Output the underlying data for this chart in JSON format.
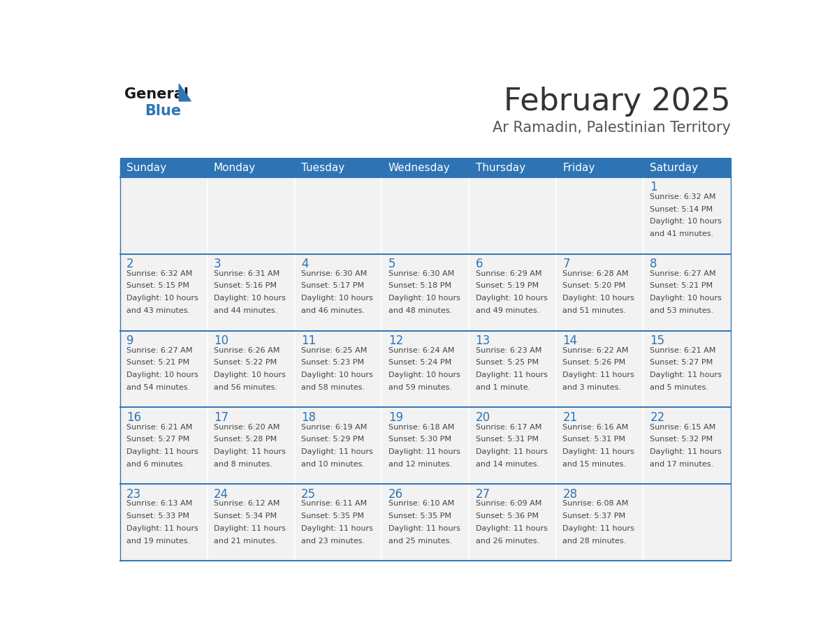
{
  "title": "February 2025",
  "subtitle": "Ar Ramadin, Palestinian Territory",
  "header_bg": "#2E74B5",
  "header_text_color": "#FFFFFF",
  "cell_bg": "#F2F2F2",
  "cell_border_color": "#2E74B5",
  "day_names": [
    "Sunday",
    "Monday",
    "Tuesday",
    "Wednesday",
    "Thursday",
    "Friday",
    "Saturday"
  ],
  "title_color": "#333333",
  "subtitle_color": "#555555",
  "day_number_color": "#2E74B5",
  "info_text_color": "#444444",
  "logo_general_color": "#1a1a1a",
  "logo_blue_color": "#2E74B5",
  "weeks": [
    [
      null,
      null,
      null,
      null,
      null,
      null,
      1
    ],
    [
      2,
      3,
      4,
      5,
      6,
      7,
      8
    ],
    [
      9,
      10,
      11,
      12,
      13,
      14,
      15
    ],
    [
      16,
      17,
      18,
      19,
      20,
      21,
      22
    ],
    [
      23,
      24,
      25,
      26,
      27,
      28,
      null
    ]
  ],
  "cell_data": {
    "1": {
      "sunrise": "6:32 AM",
      "sunset": "5:14 PM",
      "daylight_hours": 10,
      "daylight_minutes": 41
    },
    "2": {
      "sunrise": "6:32 AM",
      "sunset": "5:15 PM",
      "daylight_hours": 10,
      "daylight_minutes": 43
    },
    "3": {
      "sunrise": "6:31 AM",
      "sunset": "5:16 PM",
      "daylight_hours": 10,
      "daylight_minutes": 44
    },
    "4": {
      "sunrise": "6:30 AM",
      "sunset": "5:17 PM",
      "daylight_hours": 10,
      "daylight_minutes": 46
    },
    "5": {
      "sunrise": "6:30 AM",
      "sunset": "5:18 PM",
      "daylight_hours": 10,
      "daylight_minutes": 48
    },
    "6": {
      "sunrise": "6:29 AM",
      "sunset": "5:19 PM",
      "daylight_hours": 10,
      "daylight_minutes": 49
    },
    "7": {
      "sunrise": "6:28 AM",
      "sunset": "5:20 PM",
      "daylight_hours": 10,
      "daylight_minutes": 51
    },
    "8": {
      "sunrise": "6:27 AM",
      "sunset": "5:21 PM",
      "daylight_hours": 10,
      "daylight_minutes": 53
    },
    "9": {
      "sunrise": "6:27 AM",
      "sunset": "5:21 PM",
      "daylight_hours": 10,
      "daylight_minutes": 54
    },
    "10": {
      "sunrise": "6:26 AM",
      "sunset": "5:22 PM",
      "daylight_hours": 10,
      "daylight_minutes": 56
    },
    "11": {
      "sunrise": "6:25 AM",
      "sunset": "5:23 PM",
      "daylight_hours": 10,
      "daylight_minutes": 58
    },
    "12": {
      "sunrise": "6:24 AM",
      "sunset": "5:24 PM",
      "daylight_hours": 10,
      "daylight_minutes": 59
    },
    "13": {
      "sunrise": "6:23 AM",
      "sunset": "5:25 PM",
      "daylight_hours": 11,
      "daylight_minutes": 1
    },
    "14": {
      "sunrise": "6:22 AM",
      "sunset": "5:26 PM",
      "daylight_hours": 11,
      "daylight_minutes": 3
    },
    "15": {
      "sunrise": "6:21 AM",
      "sunset": "5:27 PM",
      "daylight_hours": 11,
      "daylight_minutes": 5
    },
    "16": {
      "sunrise": "6:21 AM",
      "sunset": "5:27 PM",
      "daylight_hours": 11,
      "daylight_minutes": 6
    },
    "17": {
      "sunrise": "6:20 AM",
      "sunset": "5:28 PM",
      "daylight_hours": 11,
      "daylight_minutes": 8
    },
    "18": {
      "sunrise": "6:19 AM",
      "sunset": "5:29 PM",
      "daylight_hours": 11,
      "daylight_minutes": 10
    },
    "19": {
      "sunrise": "6:18 AM",
      "sunset": "5:30 PM",
      "daylight_hours": 11,
      "daylight_minutes": 12
    },
    "20": {
      "sunrise": "6:17 AM",
      "sunset": "5:31 PM",
      "daylight_hours": 11,
      "daylight_minutes": 14
    },
    "21": {
      "sunrise": "6:16 AM",
      "sunset": "5:31 PM",
      "daylight_hours": 11,
      "daylight_minutes": 15
    },
    "22": {
      "sunrise": "6:15 AM",
      "sunset": "5:32 PM",
      "daylight_hours": 11,
      "daylight_minutes": 17
    },
    "23": {
      "sunrise": "6:13 AM",
      "sunset": "5:33 PM",
      "daylight_hours": 11,
      "daylight_minutes": 19
    },
    "24": {
      "sunrise": "6:12 AM",
      "sunset": "5:34 PM",
      "daylight_hours": 11,
      "daylight_minutes": 21
    },
    "25": {
      "sunrise": "6:11 AM",
      "sunset": "5:35 PM",
      "daylight_hours": 11,
      "daylight_minutes": 23
    },
    "26": {
      "sunrise": "6:10 AM",
      "sunset": "5:35 PM",
      "daylight_hours": 11,
      "daylight_minutes": 25
    },
    "27": {
      "sunrise": "6:09 AM",
      "sunset": "5:36 PM",
      "daylight_hours": 11,
      "daylight_minutes": 26
    },
    "28": {
      "sunrise": "6:08 AM",
      "sunset": "5:37 PM",
      "daylight_hours": 11,
      "daylight_minutes": 28
    }
  }
}
